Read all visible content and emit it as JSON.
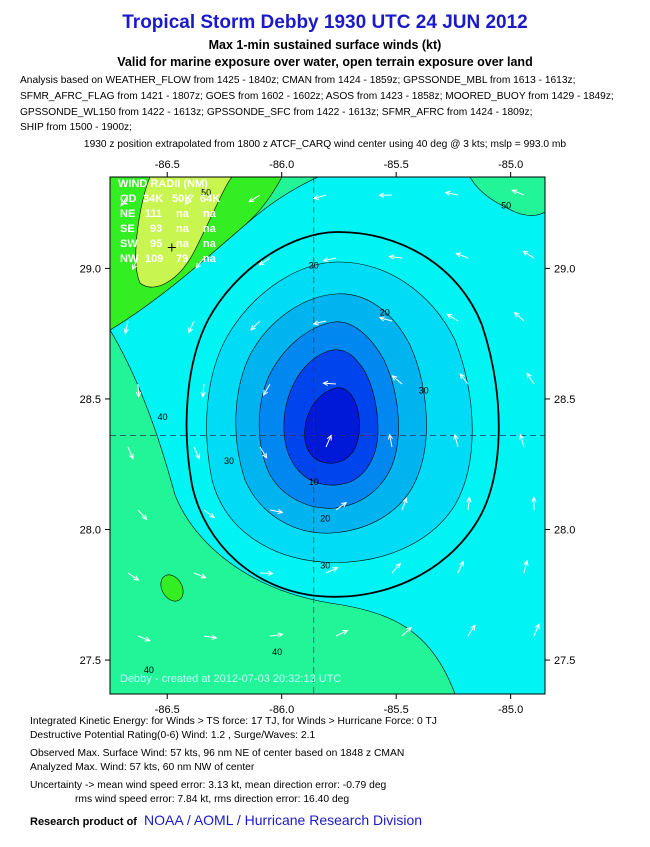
{
  "header": {
    "title": "Tropical Storm Debby 1930 UTC 24 JUN 2012",
    "subtitle1": "Max 1-min sustained surface winds (kt)",
    "subtitle2": "Valid for marine exposure over water, open terrain exposure over land",
    "analysis_lines": [
      "Analysis based on WEATHER_FLOW from 1425 - 1840z; CMAN from 1424 - 1859z; GPSSONDE_MBL from 1613 - 1613z;",
      "SFMR_AFRC_FLAG from 1421 - 1807z; GOES from 1602 - 1602z; ASOS from 1423 - 1858z; MOORED_BUOY from 1429 - 1849z;",
      "GPSSONDE_WL150 from 1422 - 1613z; GPSSONDE_SFC from 1422 - 1613z; SFMR_AFRC from 1424 - 1809z;",
      "SHIP from 1500 - 1900z;"
    ],
    "position_note": "1930 z position extrapolated from 1800 z ATCF_CARQ wind center using 40 deg @ 3 kts; mslp = 993.0 mb"
  },
  "map": {
    "lon_range": [
      -86.75,
      -84.85
    ],
    "lat_range": [
      27.37,
      29.35
    ],
    "center": {
      "lon": -85.86,
      "lat": 28.36
    },
    "secondary_marker": {
      "lon": -86.48,
      "lat": 29.08
    },
    "lon_ticks": [
      -86.5,
      -86.0,
      -85.5,
      -85.0
    ],
    "lon_tick_labels": [
      "-86.5",
      "-86.0",
      "-85.5",
      "-85.0"
    ],
    "lat_ticks": [
      27.5,
      28.0,
      28.5,
      29.0
    ],
    "lat_tick_labels": [
      "27.5",
      "28.0",
      "28.5",
      "29.0"
    ],
    "contour_labels": [
      {
        "text": "50",
        "lon": -86.33,
        "lat": 29.28
      },
      {
        "text": "50",
        "lon": -85.02,
        "lat": 29.23
      },
      {
        "text": "30",
        "lon": -85.86,
        "lat": 29.0
      },
      {
        "text": "20",
        "lon": -85.55,
        "lat": 28.82
      },
      {
        "text": "40",
        "lon": -86.52,
        "lat": 28.42
      },
      {
        "text": "30",
        "lon": -86.23,
        "lat": 28.25
      },
      {
        "text": "30",
        "lon": -85.38,
        "lat": 28.52
      },
      {
        "text": "10",
        "lon": -85.86,
        "lat": 28.17
      },
      {
        "text": "20",
        "lon": -85.81,
        "lat": 28.03
      },
      {
        "text": "30",
        "lon": -85.81,
        "lat": 27.85
      },
      {
        "text": "40",
        "lon": -86.02,
        "lat": 27.52
      },
      {
        "text": "40",
        "lon": -86.58,
        "lat": 27.45
      }
    ],
    "colors": {
      "c50": "#c8f550",
      "c40_50": "#33ee22",
      "c30_40": "#22f598",
      "c20_30": "#00f4f4",
      "c15_20": "#00dcf5",
      "c10_15": "#00b4ef",
      "c5_10": "#0088f0",
      "c0_5": "#0044ee",
      "core": "#0018d8"
    },
    "wind_radii": {
      "title": "WIND RADII (NM)",
      "header": [
        "QD",
        "34K",
        "50K",
        "64K"
      ],
      "rows": [
        [
          "NE",
          "111",
          "na",
          "na"
        ],
        [
          "SE",
          "93",
          "na",
          "na"
        ],
        [
          "SW",
          "95",
          "na",
          "na"
        ],
        [
          "NW",
          "109",
          "79",
          "na"
        ]
      ]
    },
    "watermark": "Debby - created at 2012-07-03 20:32:13 UTC"
  },
  "footer": {
    "ike": "Integrated Kinetic Energy: for Winds > TS force: 17 TJ, for Winds > Hurricane Force: 0 TJ",
    "dpr": "Destructive Potential Rating(0-6)  Wind: 1.2 , Surge/Waves: 2.1",
    "observed": "Observed Max. Surface Wind: 57 kts, 96 nm NE of center based on 1848 z CMAN",
    "analyzed": "Analyzed Max. Wind: 57 kts, 60 nm  NW of center",
    "uncertainty": "Uncertainty -> mean wind speed error: 3.13 kt, mean direction error:  -0.79 deg",
    "rms": "rms wind speed error: 7.84 kt, rms direction error: 16.40 deg",
    "research_prefix": "Research product of",
    "research_org": "NOAA  /  AOML  /  Hurricane Research Division"
  }
}
